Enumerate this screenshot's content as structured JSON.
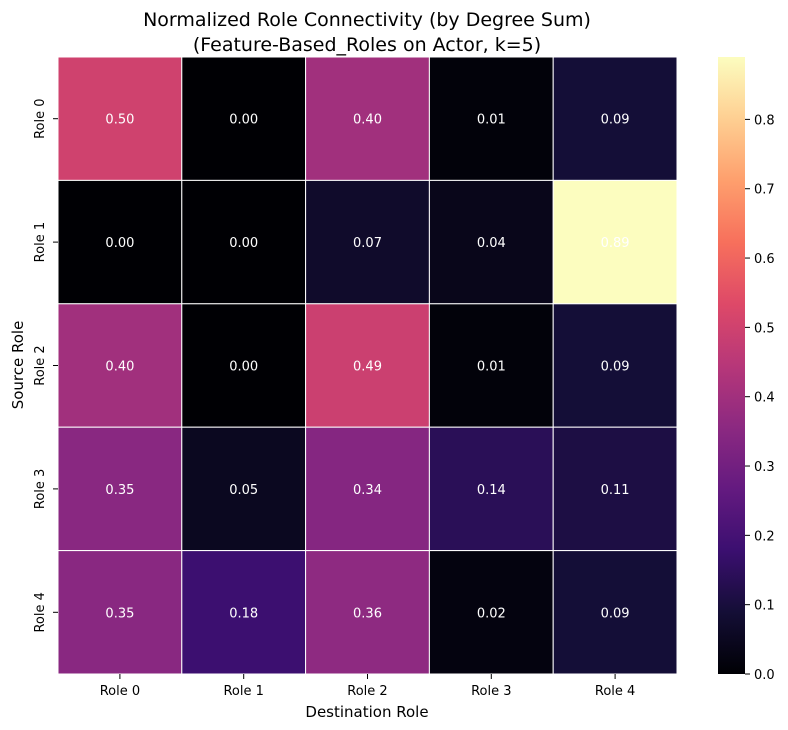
{
  "chart_data": {
    "type": "heatmap",
    "title": "Normalized Role Connectivity (by Degree Sum)",
    "subtitle": "(Feature-Based_Roles on Actor, k=5)",
    "xlabel": "Destination Role",
    "ylabel": "Source Role",
    "x_categories": [
      "Role 0",
      "Role 1",
      "Role 2",
      "Role 3",
      "Role 4"
    ],
    "y_categories": [
      "Role 0",
      "Role 1",
      "Role 2",
      "Role 3",
      "Role 4"
    ],
    "values": [
      [
        0.5,
        0.0,
        0.4,
        0.01,
        0.09
      ],
      [
        0.0,
        0.0,
        0.07,
        0.04,
        0.89
      ],
      [
        0.4,
        0.0,
        0.49,
        0.01,
        0.09
      ],
      [
        0.35,
        0.05,
        0.34,
        0.14,
        0.11
      ],
      [
        0.35,
        0.18,
        0.36,
        0.02,
        0.09
      ]
    ],
    "colormap": "magma",
    "colorbar": {
      "range": [
        0,
        0.89
      ],
      "ticks": [
        0.0,
        0.1,
        0.2,
        0.3,
        0.4,
        0.5,
        0.6,
        0.7,
        0.8
      ],
      "tick_labels": [
        "0.0",
        "0.1",
        "0.2",
        "0.3",
        "0.4",
        "0.5",
        "0.6",
        "0.7",
        "0.8"
      ]
    },
    "annotation_color": "#ffffff",
    "grid_line_color": "#ffffff"
  }
}
